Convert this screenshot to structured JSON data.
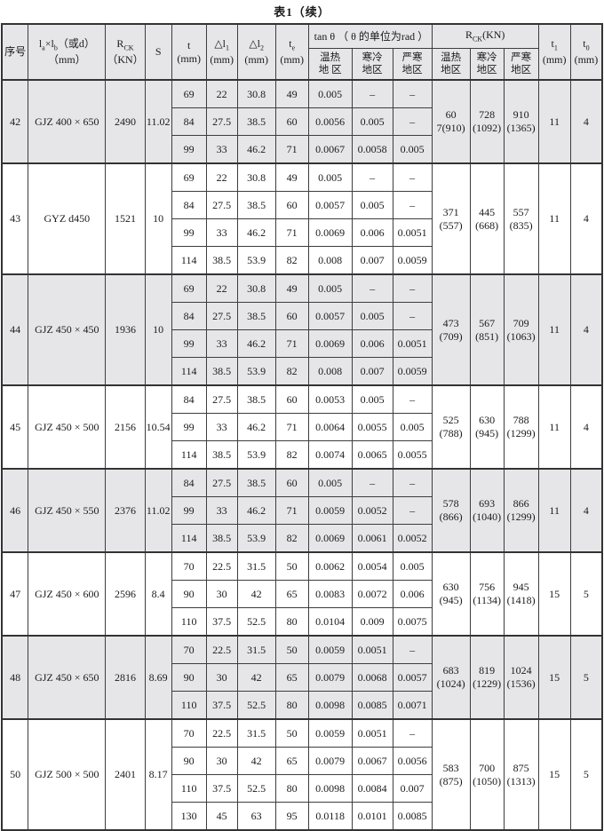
{
  "title": "表1（续）",
  "colors": {
    "shading": "#e6e6e8",
    "border": "#333333",
    "background": "#ffffff"
  },
  "table": {
    "header": {
      "no": "序号",
      "spec_html": "l<sub>a</sub>×l<sub>b</sub>（或d）<br>（mm）",
      "rck_html": "R<sub>CK</sub><br>（KN）",
      "s": "S",
      "t_html": "t<br>(mm)",
      "dl1_html": "△l<sub>1</sub><br>(mm)",
      "dl2_html": "△l<sub>2</sub><br>(mm)",
      "te_html": "t<sub>e</sub><br>(mm)",
      "tan_group": "tan θ （ θ 的单位为rad ）",
      "rck_group_html": "R<sub>CK</sub>(KN)",
      "tan_regions": [
        "温热\n地 区",
        "寒冷\n地区",
        "严寒\n地区"
      ],
      "rck_regions": [
        "温热\n地区",
        "寒冷\n地区",
        "严寒\n地区"
      ],
      "t1_html": "t<sub>1</sub><br>(mm)",
      "t0_html": "t<sub>0</sub><br>(mm)"
    },
    "groups": [
      {
        "no": "42",
        "spec": "GJZ 400 × 650",
        "rck": "2490",
        "s": "11.02",
        "shaded": true,
        "rows": [
          {
            "t": "69",
            "dl1": "22",
            "dl2": "30.8",
            "te": "49",
            "tan": [
              "0.005",
              "–",
              "–"
            ]
          },
          {
            "t": "84",
            "dl1": "27.5",
            "dl2": "38.5",
            "te": "60",
            "tan": [
              "0.0056",
              "0.005",
              "–"
            ]
          },
          {
            "t": "99",
            "dl1": "33",
            "dl2": "46.2",
            "te": "71",
            "tan": [
              "0.0067",
              "0.0058",
              "0.005"
            ]
          }
        ],
        "rck_regions": [
          "60\n7(910)",
          "728\n(1092)",
          "910\n(1365)"
        ],
        "t1": "11",
        "t0": "4"
      },
      {
        "no": "43",
        "spec": "GYZ  d450",
        "rck": "1521",
        "s": "10",
        "shaded": false,
        "rows": [
          {
            "t": "69",
            "dl1": "22",
            "dl2": "30.8",
            "te": "49",
            "tan": [
              "0.005",
              "–",
              "–"
            ]
          },
          {
            "t": "84",
            "dl1": "27.5",
            "dl2": "38.5",
            "te": "60",
            "tan": [
              "0.0057",
              "0.005",
              "–"
            ]
          },
          {
            "t": "99",
            "dl1": "33",
            "dl2": "46.2",
            "te": "71",
            "tan": [
              "0.0069",
              "0.006",
              "0.0051"
            ]
          },
          {
            "t": "114",
            "dl1": "38.5",
            "dl2": "53.9",
            "te": "82",
            "tan": [
              "0.008",
              "0.007",
              "0.0059"
            ]
          }
        ],
        "rck_regions": [
          "371\n(557)",
          "445\n(668)",
          "557\n(835)"
        ],
        "t1": "11",
        "t0": "4"
      },
      {
        "no": "44",
        "spec": "GJZ 450 × 450",
        "rck": "1936",
        "s": "10",
        "shaded": true,
        "rows": [
          {
            "t": "69",
            "dl1": "22",
            "dl2": "30.8",
            "te": "49",
            "tan": [
              "0.005",
              "–",
              "–"
            ]
          },
          {
            "t": "84",
            "dl1": "27.5",
            "dl2": "38.5",
            "te": "60",
            "tan": [
              "0.0057",
              "0.005",
              "–"
            ]
          },
          {
            "t": "99",
            "dl1": "33",
            "dl2": "46.2",
            "te": "71",
            "tan": [
              "0.0069",
              "0.006",
              "0.0051"
            ]
          },
          {
            "t": "114",
            "dl1": "38.5",
            "dl2": "53.9",
            "te": "82",
            "tan": [
              "0.008",
              "0.007",
              "0.0059"
            ]
          }
        ],
        "rck_regions": [
          "473\n(709)",
          "567\n(851)",
          "709\n(1063)"
        ],
        "t1": "11",
        "t0": "4"
      },
      {
        "no": "45",
        "spec": "GJZ 450 × 500",
        "rck": "2156",
        "s": "10.54",
        "shaded": false,
        "rows": [
          {
            "t": "84",
            "dl1": "27.5",
            "dl2": "38.5",
            "te": "60",
            "tan": [
              "0.0053",
              "0.005",
              "–"
            ]
          },
          {
            "t": "99",
            "dl1": "33",
            "dl2": "46.2",
            "te": "71",
            "tan": [
              "0.0064",
              "0.0055",
              "0.005"
            ]
          },
          {
            "t": "114",
            "dl1": "38.5",
            "dl2": "53.9",
            "te": "82",
            "tan": [
              "0.0074",
              "0.0065",
              "0.0055"
            ]
          }
        ],
        "rck_regions": [
          "525\n(788)",
          "630\n(945)",
          "788\n(1299)"
        ],
        "t1": "11",
        "t0": "4"
      },
      {
        "no": "46",
        "spec": "GJZ 450 × 550",
        "rck": "2376",
        "s": "11.02",
        "shaded": true,
        "rows": [
          {
            "t": "84",
            "dl1": "27.5",
            "dl2": "38.5",
            "te": "60",
            "tan": [
              "0.005",
              "–",
              "–"
            ]
          },
          {
            "t": "99",
            "dl1": "33",
            "dl2": "46.2",
            "te": "71",
            "tan": [
              "0.0059",
              "0.0052",
              "–"
            ]
          },
          {
            "t": "114",
            "dl1": "38.5",
            "dl2": "53.9",
            "te": "82",
            "tan": [
              "0.0069",
              "0.0061",
              "0.0052"
            ]
          }
        ],
        "rck_regions": [
          "578\n(866)",
          "693\n(1040)",
          "866\n(1299)"
        ],
        "t1": "11",
        "t0": "4"
      },
      {
        "no": "47",
        "spec": "GJZ 450 × 600",
        "rck": "2596",
        "s": "8.4",
        "shaded": false,
        "rows": [
          {
            "t": "70",
            "dl1": "22.5",
            "dl2": "31.5",
            "te": "50",
            "tan": [
              "0.0062",
              "0.0054",
              "0.005"
            ]
          },
          {
            "t": "90",
            "dl1": "30",
            "dl2": "42",
            "te": "65",
            "tan": [
              "0.0083",
              "0.0072",
              "0.006"
            ]
          },
          {
            "t": "110",
            "dl1": "37.5",
            "dl2": "52.5",
            "te": "80",
            "tan": [
              "0.0104",
              "0.009",
              "0.0075"
            ]
          }
        ],
        "rck_regions": [
          "630\n(945)",
          "756\n(1134)",
          "945\n(1418)"
        ],
        "t1": "15",
        "t0": "5"
      },
      {
        "no": "48",
        "spec": "GJZ 450 × 650",
        "rck": "2816",
        "s": "8.69",
        "shaded": true,
        "rows": [
          {
            "t": "70",
            "dl1": "22.5",
            "dl2": "31.5",
            "te": "50",
            "tan": [
              "0.0059",
              "0.0051",
              "–"
            ]
          },
          {
            "t": "90",
            "dl1": "30",
            "dl2": "42",
            "te": "65",
            "tan": [
              "0.0079",
              "0.0068",
              "0.0057"
            ]
          },
          {
            "t": "110",
            "dl1": "37.5",
            "dl2": "52.5",
            "te": "80",
            "tan": [
              "0.0098",
              "0.0085",
              "0.0071"
            ]
          }
        ],
        "rck_regions": [
          "683\n(1024)",
          "819\n(1229)",
          "1024\n(1536)"
        ],
        "t1": "15",
        "t0": "5"
      },
      {
        "no": "50",
        "spec": "GJZ 500 × 500",
        "rck": "2401",
        "s": "8.17",
        "shaded": false,
        "rows": [
          {
            "t": "70",
            "dl1": "22.5",
            "dl2": "31.5",
            "te": "50",
            "tan": [
              "0.0059",
              "0.0051",
              "–"
            ]
          },
          {
            "t": "90",
            "dl1": "30",
            "dl2": "42",
            "te": "65",
            "tan": [
              "0.0079",
              "0.0067",
              "0.0056"
            ]
          },
          {
            "t": "110",
            "dl1": "37.5",
            "dl2": "52.5",
            "te": "80",
            "tan": [
              "0.0098",
              "0.0084",
              "0.007"
            ]
          },
          {
            "t": "130",
            "dl1": "45",
            "dl2": "63",
            "te": "95",
            "tan": [
              "0.0118",
              "0.0101",
              "0.0085"
            ]
          }
        ],
        "rck_regions": [
          "583\n(875)",
          "700\n(1050)",
          "875\n(1313)"
        ],
        "t1": "15",
        "t0": "5"
      }
    ]
  }
}
